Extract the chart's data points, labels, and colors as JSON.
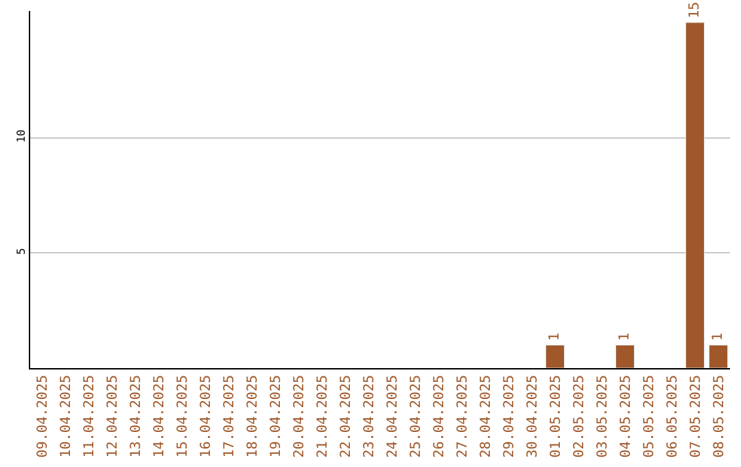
{
  "chart_data": {
    "type": "bar",
    "categories": [
      "09.04.2025",
      "10.04.2025",
      "11.04.2025",
      "12.04.2025",
      "13.04.2025",
      "14.04.2025",
      "15.04.2025",
      "16.04.2025",
      "17.04.2025",
      "18.04.2025",
      "19.04.2025",
      "20.04.2025",
      "21.04.2025",
      "22.04.2025",
      "23.04.2025",
      "24.04.2025",
      "25.04.2025",
      "26.04.2025",
      "27.04.2025",
      "28.04.2025",
      "29.04.2025",
      "30.04.2025",
      "01.05.2025",
      "02.05.2025",
      "03.05.2025",
      "04.05.2025",
      "05.05.2025",
      "06.05.2025",
      "07.05.2025",
      "08.05.2025"
    ],
    "values": [
      null,
      null,
      null,
      null,
      null,
      null,
      null,
      null,
      null,
      null,
      null,
      null,
      null,
      null,
      null,
      null,
      null,
      null,
      null,
      null,
      null,
      null,
      1,
      null,
      null,
      1,
      null,
      null,
      15,
      1
    ],
    "value_labels": [
      null,
      null,
      null,
      null,
      null,
      null,
      null,
      null,
      null,
      null,
      null,
      null,
      null,
      null,
      null,
      null,
      null,
      null,
      null,
      null,
      null,
      null,
      "1",
      null,
      null,
      "1",
      null,
      null,
      "15",
      "1"
    ],
    "color": "#a0582a",
    "ylim": [
      0,
      15.5
    ],
    "yticks": [
      5,
      10
    ],
    "grid": "y",
    "legend": false
  }
}
